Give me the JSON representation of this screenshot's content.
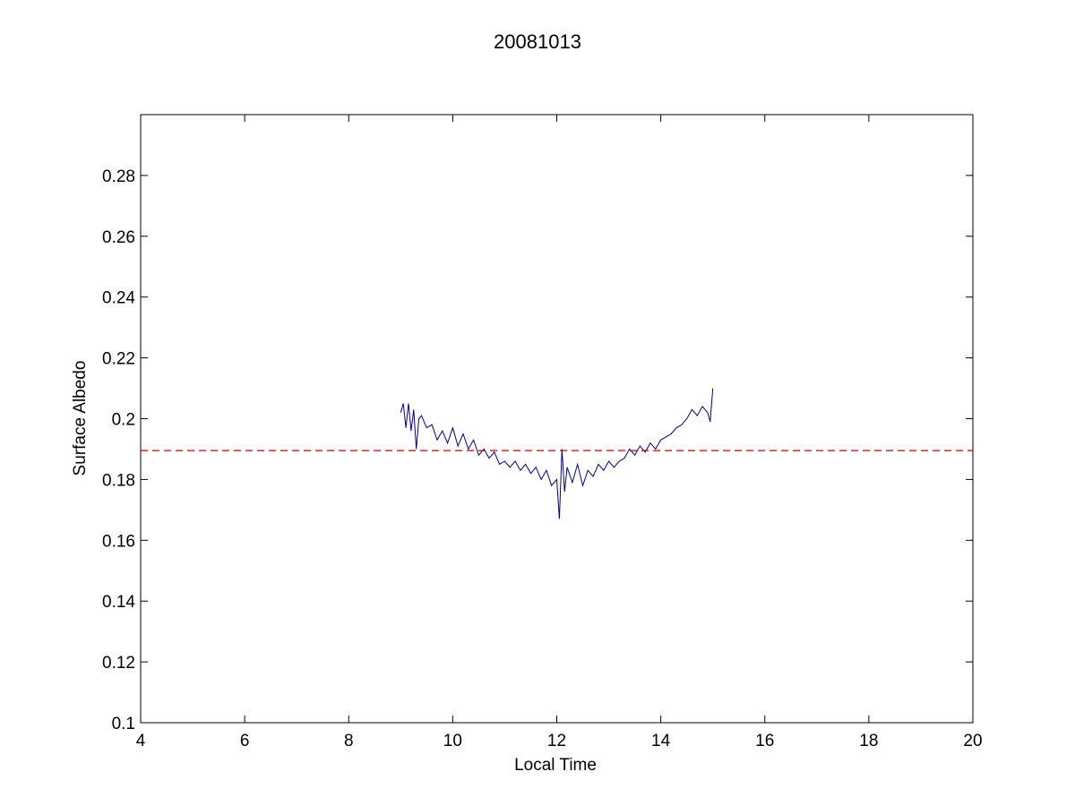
{
  "chart_data": {
    "type": "line",
    "title": "20081013",
    "xlabel": "Local Time",
    "ylabel": "Surface Albedo",
    "xlim": [
      4,
      20
    ],
    "ylim": [
      0.1,
      0.3
    ],
    "xticks": [
      4,
      6,
      8,
      10,
      12,
      14,
      16,
      18,
      20
    ],
    "xtick_labels": [
      "4",
      "6",
      "8",
      "10",
      "12",
      "14",
      "16",
      "18",
      "20"
    ],
    "yticks": [
      0.1,
      0.12,
      0.14,
      0.16,
      0.18,
      0.2,
      0.22,
      0.24,
      0.26,
      0.28
    ],
    "ytick_labels": [
      "0.1",
      "0.12",
      "0.14",
      "0.16",
      "0.18",
      "0.2",
      "0.22",
      "0.24",
      "0.26",
      "0.28"
    ],
    "grid": false,
    "colors": {
      "series": "#00008B",
      "reference": "#CC0000",
      "axes": "#000000"
    },
    "series": [
      {
        "style": "solid",
        "x": [
          9.0,
          9.05,
          9.1,
          9.15,
          9.2,
          9.25,
          9.3,
          9.35,
          9.4,
          9.5,
          9.6,
          9.7,
          9.8,
          9.9,
          10.0,
          10.1,
          10.2,
          10.3,
          10.4,
          10.5,
          10.6,
          10.7,
          10.8,
          10.9,
          11.0,
          11.1,
          11.2,
          11.3,
          11.4,
          11.5,
          11.6,
          11.7,
          11.8,
          11.9,
          12.0,
          12.05,
          12.1,
          12.15,
          12.2,
          12.3,
          12.4,
          12.5,
          12.6,
          12.7,
          12.8,
          12.9,
          13.0,
          13.1,
          13.2,
          13.3,
          13.4,
          13.5,
          13.6,
          13.7,
          13.8,
          13.9,
          14.0,
          14.1,
          14.2,
          14.3,
          14.4,
          14.5,
          14.6,
          14.7,
          14.8,
          14.9,
          14.95,
          15.0
        ],
        "y": [
          0.202,
          0.205,
          0.197,
          0.205,
          0.196,
          0.203,
          0.19,
          0.2,
          0.201,
          0.197,
          0.198,
          0.193,
          0.196,
          0.192,
          0.197,
          0.191,
          0.195,
          0.19,
          0.193,
          0.188,
          0.19,
          0.187,
          0.189,
          0.185,
          0.186,
          0.184,
          0.186,
          0.183,
          0.185,
          0.182,
          0.184,
          0.18,
          0.183,
          0.178,
          0.18,
          0.167,
          0.19,
          0.176,
          0.184,
          0.179,
          0.185,
          0.178,
          0.183,
          0.181,
          0.185,
          0.183,
          0.186,
          0.184,
          0.186,
          0.187,
          0.19,
          0.188,
          0.191,
          0.189,
          0.192,
          0.19,
          0.193,
          0.194,
          0.195,
          0.197,
          0.198,
          0.2,
          0.203,
          0.201,
          0.204,
          0.202,
          0.199,
          0.21
        ]
      },
      {
        "style": "dashed",
        "x": [
          4,
          20
        ],
        "y": [
          0.1895,
          0.1895
        ]
      }
    ]
  }
}
